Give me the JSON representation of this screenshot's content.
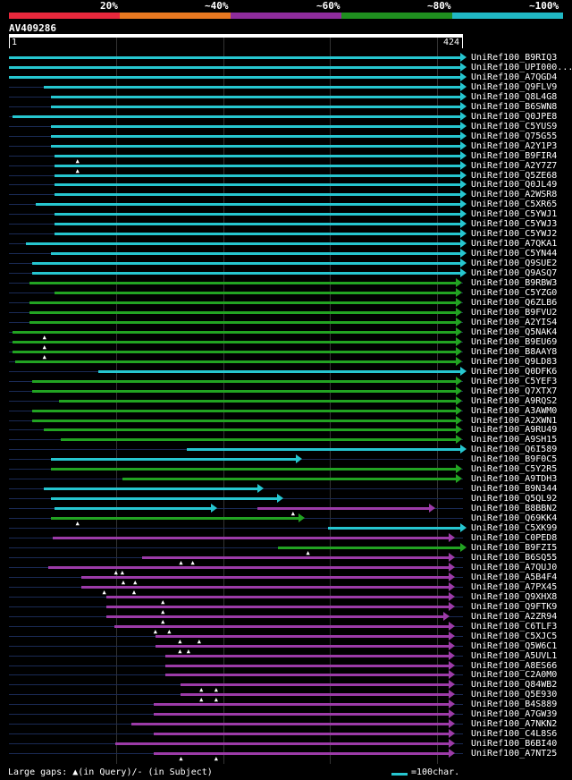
{
  "score_scale": {
    "labels": [
      "20%",
      "~40%",
      "~60%",
      "~80%",
      "~100%"
    ],
    "colors": [
      "#e8283c",
      "#e87820",
      "#8e2c9c",
      "#1f8f1f",
      "#20b8c4"
    ]
  },
  "query": {
    "id": "AV409286",
    "start_tick": "1",
    "end_tick": "424"
  },
  "colors": {
    "cyan": "#26c6d0",
    "green": "#22a322",
    "purple": "#9c3ba8"
  },
  "hits": [
    {
      "label": "UniRef100_B9RIQ3",
      "color": "cyan",
      "start": 1,
      "end": 424,
      "gaps": []
    },
    {
      "label": "UniRef100_UPI000...",
      "color": "cyan",
      "start": 1,
      "end": 424,
      "gaps": []
    },
    {
      "label": "UniRef100_A7QGD4",
      "color": "cyan",
      "start": 1,
      "end": 424,
      "gaps": []
    },
    {
      "label": "UniRef100_Q9FLV9",
      "color": "cyan",
      "start": 34,
      "end": 424,
      "gaps": []
    },
    {
      "label": "UniRef100_Q8L4G8",
      "color": "cyan",
      "start": 40,
      "end": 424,
      "gaps": []
    },
    {
      "label": "UniRef100_B6SWN8",
      "color": "cyan",
      "start": 40,
      "end": 424,
      "gaps": []
    },
    {
      "label": "UniRef100_Q0JPE8",
      "color": "cyan",
      "start": 4,
      "end": 424,
      "gaps": []
    },
    {
      "label": "UniRef100_C5YUS9",
      "color": "cyan",
      "start": 40,
      "end": 424,
      "gaps": []
    },
    {
      "label": "UniRef100_Q75G55",
      "color": "cyan",
      "start": 40,
      "end": 424,
      "gaps": []
    },
    {
      "label": "UniRef100_A2Y1P3",
      "color": "cyan",
      "start": 40,
      "end": 424,
      "gaps": []
    },
    {
      "label": "UniRef100_B9FIR4",
      "color": "cyan",
      "start": 44,
      "end": 424,
      "gaps": [
        66
      ]
    },
    {
      "label": "UniRef100_A2Y7Z7",
      "color": "cyan",
      "start": 44,
      "end": 424,
      "gaps": [
        66
      ]
    },
    {
      "label": "UniRef100_Q5ZE68",
      "color": "cyan",
      "start": 44,
      "end": 424,
      "gaps": []
    },
    {
      "label": "UniRef100_Q0JL49",
      "color": "cyan",
      "start": 44,
      "end": 424,
      "gaps": []
    },
    {
      "label": "UniRef100_A2WSR8",
      "color": "cyan",
      "start": 44,
      "end": 424,
      "gaps": []
    },
    {
      "label": "UniRef100_C5XR65",
      "color": "cyan",
      "start": 26,
      "end": 424,
      "gaps": []
    },
    {
      "label": "UniRef100_C5YWJ1",
      "color": "cyan",
      "start": 44,
      "end": 424,
      "gaps": []
    },
    {
      "label": "UniRef100_C5YWJ3",
      "color": "cyan",
      "start": 44,
      "end": 424,
      "gaps": []
    },
    {
      "label": "UniRef100_C5YWJ2",
      "color": "cyan",
      "start": 44,
      "end": 424,
      "gaps": []
    },
    {
      "label": "UniRef100_A7QKA1",
      "color": "cyan",
      "start": 17,
      "end": 424,
      "gaps": []
    },
    {
      "label": "UniRef100_C5YN44",
      "color": "cyan",
      "start": 40,
      "end": 424,
      "gaps": []
    },
    {
      "label": "UniRef100_Q9SUE2",
      "color": "cyan",
      "start": 23,
      "end": 424,
      "gaps": []
    },
    {
      "label": "UniRef100_Q9ASQ7",
      "color": "cyan",
      "start": 23,
      "end": 424,
      "gaps": []
    },
    {
      "label": "UniRef100_B9RBW3",
      "color": "green",
      "start": 20,
      "end": 420,
      "gaps": []
    },
    {
      "label": "UniRef100_C5YZG0",
      "color": "green",
      "start": 44,
      "end": 420,
      "gaps": []
    },
    {
      "label": "UniRef100_Q6ZLB6",
      "color": "green",
      "start": 20,
      "end": 420,
      "gaps": []
    },
    {
      "label": "UniRef100_B9FVU2",
      "color": "green",
      "start": 20,
      "end": 420,
      "gaps": []
    },
    {
      "label": "UniRef100_A2YIS4",
      "color": "green",
      "start": 20,
      "end": 420,
      "gaps": []
    },
    {
      "label": "UniRef100_Q5NAK4",
      "color": "green",
      "start": 4,
      "end": 420,
      "gaps": [
        35
      ]
    },
    {
      "label": "UniRef100_B9EU69",
      "color": "green",
      "start": 4,
      "end": 420,
      "gaps": [
        35
      ]
    },
    {
      "label": "UniRef100_B8AAY8",
      "color": "green",
      "start": 4,
      "end": 420,
      "gaps": [
        35
      ]
    },
    {
      "label": "UniRef100_Q9LD83",
      "color": "green",
      "start": 7,
      "end": 420,
      "gaps": []
    },
    {
      "label": "UniRef100_Q0DFK6",
      "color": "cyan",
      "start": 85,
      "end": 424,
      "gaps": []
    },
    {
      "label": "UniRef100_C5YEF3",
      "color": "green",
      "start": 23,
      "end": 420,
      "gaps": []
    },
    {
      "label": "UniRef100_Q7XTX7",
      "color": "green",
      "start": 23,
      "end": 420,
      "gaps": []
    },
    {
      "label": "UniRef100_A9RQS2",
      "color": "green",
      "start": 48,
      "end": 420,
      "gaps": []
    },
    {
      "label": "UniRef100_A3AWM0",
      "color": "green",
      "start": 23,
      "end": 420,
      "gaps": []
    },
    {
      "label": "UniRef100_A2XWN1",
      "color": "green",
      "start": 23,
      "end": 420,
      "gaps": []
    },
    {
      "label": "UniRef100_A9RU49",
      "color": "green",
      "start": 34,
      "end": 420,
      "gaps": []
    },
    {
      "label": "UniRef100_A9SH15",
      "color": "green",
      "start": 50,
      "end": 420,
      "gaps": []
    },
    {
      "label": "UniRef100_Q6I589",
      "color": "cyan",
      "start": 168,
      "end": 424,
      "gaps": []
    },
    {
      "label": "UniRef100_B9F0C5",
      "color": "cyan",
      "start": 40,
      "end": 270,
      "gaps": []
    },
    {
      "label": "UniRef100_C5Y2R5",
      "color": "green",
      "start": 40,
      "end": 420,
      "gaps": []
    },
    {
      "label": "UniRef100_A9TDH3",
      "color": "green",
      "start": 107,
      "end": 420,
      "gaps": []
    },
    {
      "label": "UniRef100_B9N344",
      "color": "cyan",
      "start": 34,
      "end": 234,
      "gaps": []
    },
    {
      "label": "UniRef100_Q5QL92",
      "color": "cyan",
      "start": 40,
      "end": 252,
      "gaps": []
    },
    {
      "label": "UniRef100_B8BBN2",
      "color": "cyan",
      "start": 44,
      "end": 190,
      "gaps": []
    },
    {
      "label": "UniRef100_B8BBN2b",
      "color": "purple",
      "start": 234,
      "end": 395,
      "gaps": [
        268
      ],
      "nolabel": true
    },
    {
      "label": "UniRef100_Q69KK4",
      "color": "green",
      "start": 40,
      "end": 272,
      "gaps": [
        66
      ]
    },
    {
      "label": "UniRef100_C5XK99",
      "color": "cyan",
      "start": 300,
      "end": 424,
      "gaps": []
    },
    {
      "label": "UniRef100_C0PED8",
      "color": "purple",
      "start": 42,
      "end": 413,
      "gaps": []
    },
    {
      "label": "UniRef100_B9FZI5",
      "color": "green",
      "start": 253,
      "end": 424,
      "gaps": [
        282
      ]
    },
    {
      "label": "UniRef100_B6SQ55",
      "color": "purple",
      "start": 126,
      "end": 413,
      "gaps": [
        163,
        174
      ]
    },
    {
      "label": "UniRef100_A7QUJ0",
      "color": "purple",
      "start": 38,
      "end": 413,
      "gaps": [
        102,
        108
      ]
    },
    {
      "label": "UniRef100_A5B4F4",
      "color": "purple",
      "start": 69,
      "end": 413,
      "gaps": [
        109,
        120
      ]
    },
    {
      "label": "UniRef100_A7PX45",
      "color": "purple",
      "start": 69,
      "end": 413,
      "gaps": [
        91,
        119
      ]
    },
    {
      "label": "UniRef100_Q9XHX8",
      "color": "purple",
      "start": 92,
      "end": 413,
      "gaps": [
        146
      ]
    },
    {
      "label": "UniRef100_Q9FTK9",
      "color": "purple",
      "start": 92,
      "end": 413,
      "gaps": [
        146
      ]
    },
    {
      "label": "UniRef100_A2ZR94",
      "color": "purple",
      "start": 92,
      "end": 408,
      "gaps": [
        146
      ]
    },
    {
      "label": "UniRef100_C6TLF3",
      "color": "purple",
      "start": 100,
      "end": 413,
      "gaps": [
        139,
        152
      ]
    },
    {
      "label": "UniRef100_C5XJC5",
      "color": "purple",
      "start": 138,
      "end": 413,
      "gaps": [
        162,
        180
      ]
    },
    {
      "label": "UniRef100_Q5W6C1",
      "color": "purple",
      "start": 138,
      "end": 413,
      "gaps": [
        162,
        170
      ]
    },
    {
      "label": "UniRef100_A5UVL1",
      "color": "purple",
      "start": 148,
      "end": 413,
      "gaps": []
    },
    {
      "label": "UniRef100_A8ES66",
      "color": "purple",
      "start": 148,
      "end": 413,
      "gaps": []
    },
    {
      "label": "UniRef100_C2A0M0",
      "color": "purple",
      "start": 148,
      "end": 413,
      "gaps": []
    },
    {
      "label": "UniRef100_Q84WB2",
      "color": "purple",
      "start": 162,
      "end": 413,
      "gaps": [
        182,
        196
      ]
    },
    {
      "label": "UniRef100_Q5E930",
      "color": "purple",
      "start": 162,
      "end": 413,
      "gaps": [
        182,
        196
      ]
    },
    {
      "label": "UniRef100_B4S889",
      "color": "purple",
      "start": 137,
      "end": 413,
      "gaps": []
    },
    {
      "label": "UniRef100_A7GW39",
      "color": "purple",
      "start": 137,
      "end": 413,
      "gaps": []
    },
    {
      "label": "UniRef100_A7NKN2",
      "color": "purple",
      "start": 116,
      "end": 413,
      "gaps": []
    },
    {
      "label": "UniRef100_C4L8S6",
      "color": "purple",
      "start": 137,
      "end": 413,
      "gaps": []
    },
    {
      "label": "UniRef100_B6BI40",
      "color": "purple",
      "start": 101,
      "end": 413,
      "gaps": []
    },
    {
      "label": "UniRef100_A7NT25",
      "color": "purple",
      "start": 137,
      "end": 413,
      "gaps": [
        163,
        196
      ]
    }
  ],
  "legend": {
    "gaps_text": "Large gaps: ▲(in Query)/- (in Subject)",
    "scale_text": "=100char."
  }
}
